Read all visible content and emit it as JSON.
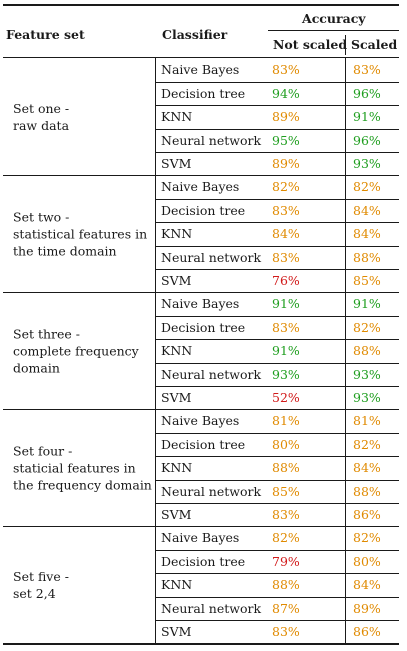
{
  "header": {
    "feature_set": "Feature set",
    "classifier": "Classifier",
    "accuracy": "Accuracy",
    "not_scaled": "Not scaled",
    "scaled": "Scaled"
  },
  "colors": {
    "green": "#1f9e1f",
    "orange": "#e08a00",
    "red": "#d11a1a"
  },
  "groups": [
    {
      "feature_lines": [
        "Set one -",
        "raw data"
      ],
      "rows": [
        {
          "classifier": "Naive Bayes",
          "not_scaled": "83%",
          "not_scaled_color": "orange",
          "scaled": "83%",
          "scaled_color": "orange"
        },
        {
          "classifier": "Decision tree",
          "not_scaled": "94%",
          "not_scaled_color": "green",
          "scaled": "96%",
          "scaled_color": "green"
        },
        {
          "classifier": "KNN",
          "not_scaled": "89%",
          "not_scaled_color": "orange",
          "scaled": "91%",
          "scaled_color": "green"
        },
        {
          "classifier": "Neural network",
          "not_scaled": "95%",
          "not_scaled_color": "green",
          "scaled": "96%",
          "scaled_color": "green"
        },
        {
          "classifier": "SVM",
          "not_scaled": "89%",
          "not_scaled_color": "orange",
          "scaled": "93%",
          "scaled_color": "green"
        }
      ]
    },
    {
      "feature_lines": [
        "Set two -",
        "statistical features in",
        "the time domain"
      ],
      "rows": [
        {
          "classifier": "Naive Bayes",
          "not_scaled": "82%",
          "not_scaled_color": "orange",
          "scaled": "82%",
          "scaled_color": "orange"
        },
        {
          "classifier": "Decision tree",
          "not_scaled": "83%",
          "not_scaled_color": "orange",
          "scaled": "84%",
          "scaled_color": "orange"
        },
        {
          "classifier": "KNN",
          "not_scaled": "84%",
          "not_scaled_color": "orange",
          "scaled": "84%",
          "scaled_color": "orange"
        },
        {
          "classifier": "Neural network",
          "not_scaled": "83%",
          "not_scaled_color": "orange",
          "scaled": "88%",
          "scaled_color": "orange"
        },
        {
          "classifier": "SVM",
          "not_scaled": "76%",
          "not_scaled_color": "red",
          "scaled": "85%",
          "scaled_color": "orange"
        }
      ]
    },
    {
      "feature_lines": [
        "Set three -",
        "complete frequency",
        "domain"
      ],
      "rows": [
        {
          "classifier": "Naive Bayes",
          "not_scaled": "91%",
          "not_scaled_color": "green",
          "scaled": "91%",
          "scaled_color": "green"
        },
        {
          "classifier": "Decision tree",
          "not_scaled": "83%",
          "not_scaled_color": "orange",
          "scaled": "82%",
          "scaled_color": "orange"
        },
        {
          "classifier": "KNN",
          "not_scaled": "91%",
          "not_scaled_color": "green",
          "scaled": "88%",
          "scaled_color": "orange"
        },
        {
          "classifier": "Neural network",
          "not_scaled": "93%",
          "not_scaled_color": "green",
          "scaled": "93%",
          "scaled_color": "green"
        },
        {
          "classifier": "SVM",
          "not_scaled": "52%",
          "not_scaled_color": "red",
          "scaled": "93%",
          "scaled_color": "green"
        }
      ]
    },
    {
      "feature_lines": [
        "Set four -",
        "staticial features in",
        "the frequency domain"
      ],
      "rows": [
        {
          "classifier": "Naive Bayes",
          "not_scaled": "81%",
          "not_scaled_color": "orange",
          "scaled": "81%",
          "scaled_color": "orange"
        },
        {
          "classifier": "Decision tree",
          "not_scaled": "80%",
          "not_scaled_color": "orange",
          "scaled": "82%",
          "scaled_color": "orange"
        },
        {
          "classifier": "KNN",
          "not_scaled": "88%",
          "not_scaled_color": "orange",
          "scaled": "84%",
          "scaled_color": "orange"
        },
        {
          "classifier": "Neural network",
          "not_scaled": "85%",
          "not_scaled_color": "orange",
          "scaled": "88%",
          "scaled_color": "orange"
        },
        {
          "classifier": "SVM",
          "not_scaled": "83%",
          "not_scaled_color": "orange",
          "scaled": "86%",
          "scaled_color": "orange"
        }
      ]
    },
    {
      "feature_lines": [
        "Set five -",
        "set 2,4"
      ],
      "rows": [
        {
          "classifier": "Naive Bayes",
          "not_scaled": "82%",
          "not_scaled_color": "orange",
          "scaled": "82%",
          "scaled_color": "orange"
        },
        {
          "classifier": "Decision tree",
          "not_scaled": "79%",
          "not_scaled_color": "red",
          "scaled": "80%",
          "scaled_color": "orange"
        },
        {
          "classifier": "KNN",
          "not_scaled": "88%",
          "not_scaled_color": "orange",
          "scaled": "84%",
          "scaled_color": "orange"
        },
        {
          "classifier": "Neural network",
          "not_scaled": "87%",
          "not_scaled_color": "orange",
          "scaled": "89%",
          "scaled_color": "orange"
        },
        {
          "classifier": "SVM",
          "not_scaled": "83%",
          "not_scaled_color": "orange",
          "scaled": "86%",
          "scaled_color": "orange"
        }
      ]
    }
  ]
}
